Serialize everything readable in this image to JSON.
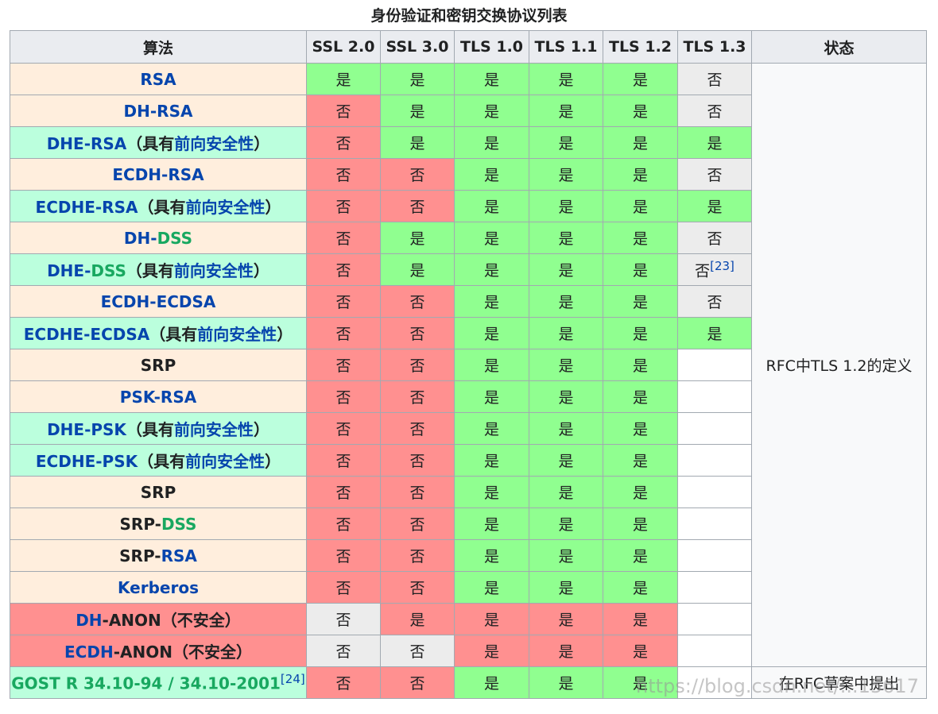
{
  "caption": "身份验证和密钥交换协议列表",
  "headers": [
    "算法",
    "SSL 2.0",
    "SSL 3.0",
    "TLS 1.0",
    "TLS 1.1",
    "TLS 1.2",
    "TLS 1.3",
    "状态"
  ],
  "values": {
    "yes": "是",
    "no": "否"
  },
  "fs_label": {
    "open": "（",
    "pre": "具有",
    "link": "前向安全性",
    "close": "）"
  },
  "insecure_label": "（不安全）",
  "footnote_23": "[23]",
  "footnote_24": "[24]",
  "status_rfc": "RFC中TLS 1.2的定义",
  "status_draft": "在RFC草案中提出",
  "watermark": "https://blog.csdn.net/...15617",
  "colors": {
    "yes": "#90ff90",
    "no": "#ff9090",
    "na": "#ececec",
    "tan": "#ffeedd",
    "mint": "#bbffdd",
    "link": "#0645ad",
    "dss_green": "#18a860"
  },
  "rows": [
    {
      "name": "rsa",
      "parts": [
        [
          "RSA",
          "blue"
        ]
      ],
      "bg": "tan",
      "cells": [
        "yes",
        "yes",
        "yes",
        "yes",
        "yes",
        "no_gray"
      ]
    },
    {
      "name": "dh-rsa",
      "parts": [
        [
          "DH-RSA",
          "blue"
        ]
      ],
      "bg": "tan",
      "cells": [
        "no",
        "yes",
        "yes",
        "yes",
        "yes",
        "no_gray"
      ]
    },
    {
      "name": "dhe-rsa",
      "parts": [
        [
          "DHE-RSA",
          "blue"
        ]
      ],
      "fs": true,
      "bg": "mint",
      "cells": [
        "no",
        "yes",
        "yes",
        "yes",
        "yes",
        "yes"
      ]
    },
    {
      "name": "ecdh-rsa",
      "parts": [
        [
          "ECDH-RSA",
          "blue"
        ]
      ],
      "bg": "tan",
      "cells": [
        "no",
        "no",
        "yes",
        "yes",
        "yes",
        "no_gray"
      ]
    },
    {
      "name": "ecdhe-rsa",
      "parts": [
        [
          "ECDHE-RSA",
          "blue"
        ]
      ],
      "fs": true,
      "bg": "mint",
      "cells": [
        "no",
        "no",
        "yes",
        "yes",
        "yes",
        "yes"
      ]
    },
    {
      "name": "dh-dss",
      "parts": [
        [
          "DH-",
          "blue"
        ],
        [
          "DSS",
          "green"
        ]
      ],
      "bg": "tan",
      "cells": [
        "no",
        "yes",
        "yes",
        "yes",
        "yes",
        "no_gray"
      ]
    },
    {
      "name": "dhe-dss",
      "parts": [
        [
          "DHE-",
          "blue"
        ],
        [
          "DSS",
          "green"
        ]
      ],
      "fs": true,
      "bg": "mint",
      "cells": [
        "no",
        "yes",
        "yes",
        "yes",
        "yes",
        "no_gray_23"
      ]
    },
    {
      "name": "ecdh-ecdsa",
      "parts": [
        [
          "ECDH-ECDSA",
          "blue"
        ]
      ],
      "bg": "tan",
      "cells": [
        "no",
        "no",
        "yes",
        "yes",
        "yes",
        "no_gray"
      ]
    },
    {
      "name": "ecdhe-ecdsa",
      "parts": [
        [
          "ECDHE-ECDSA",
          "blue"
        ]
      ],
      "fs": true,
      "bg": "mint",
      "cells": [
        "no",
        "no",
        "yes",
        "yes",
        "yes",
        "yes"
      ]
    },
    {
      "name": "srp-1",
      "parts": [
        [
          "SRP",
          "black"
        ]
      ],
      "bg": "tan",
      "cells": [
        "no",
        "no",
        "yes",
        "yes",
        "yes",
        "blank"
      ]
    },
    {
      "name": "psk-rsa",
      "parts": [
        [
          "PSK-RSA",
          "blue"
        ]
      ],
      "bg": "tan",
      "cells": [
        "no",
        "no",
        "yes",
        "yes",
        "yes",
        "blank"
      ]
    },
    {
      "name": "dhe-psk",
      "parts": [
        [
          "DHE-PSK",
          "blue"
        ]
      ],
      "fs": true,
      "bg": "mint",
      "cells": [
        "no",
        "no",
        "yes",
        "yes",
        "yes",
        "blank"
      ]
    },
    {
      "name": "ecdhe-psk",
      "parts": [
        [
          "ECDHE-PSK",
          "blue"
        ]
      ],
      "fs": true,
      "bg": "mint",
      "cells": [
        "no",
        "no",
        "yes",
        "yes",
        "yes",
        "blank"
      ]
    },
    {
      "name": "srp-2",
      "parts": [
        [
          "SRP",
          "black"
        ]
      ],
      "bg": "tan",
      "cells": [
        "no",
        "no",
        "yes",
        "yes",
        "yes",
        "blank"
      ]
    },
    {
      "name": "srp-dss",
      "parts": [
        [
          "SRP-",
          "black"
        ],
        [
          "DSS",
          "green"
        ]
      ],
      "bg": "tan",
      "cells": [
        "no",
        "no",
        "yes",
        "yes",
        "yes",
        "blank"
      ]
    },
    {
      "name": "srp-rsa",
      "parts": [
        [
          "SRP-",
          "black"
        ],
        [
          "RSA",
          "blue"
        ]
      ],
      "bg": "tan",
      "cells": [
        "no",
        "no",
        "yes",
        "yes",
        "yes",
        "blank"
      ]
    },
    {
      "name": "kerberos",
      "parts": [
        [
          "Kerberos",
          "blue"
        ]
      ],
      "bg": "tan",
      "cells": [
        "no",
        "no",
        "yes",
        "yes",
        "yes",
        "blank"
      ]
    },
    {
      "name": "dh-anon",
      "parts": [
        [
          "DH",
          "blue"
        ],
        [
          "-ANON",
          "black"
        ]
      ],
      "insecure": true,
      "bg": "red",
      "cells": [
        "no_gray",
        "yes_red",
        "yes_red",
        "yes_red",
        "yes_red",
        "blank"
      ]
    },
    {
      "name": "ecdh-anon",
      "parts": [
        [
          "ECDH",
          "blue"
        ],
        [
          "-ANON",
          "black"
        ]
      ],
      "insecure": true,
      "bg": "red",
      "cells": [
        "no_gray",
        "no_gray",
        "yes_red",
        "yes_red",
        "yes_red",
        "blank"
      ]
    },
    {
      "name": "gost",
      "parts": [
        [
          "GOST R 34.10-94 / 34.10-2001",
          "green"
        ]
      ],
      "gost": true,
      "bg": "mint",
      "cells": [
        "no",
        "no",
        "yes",
        "yes",
        "yes",
        "blank"
      ]
    }
  ]
}
